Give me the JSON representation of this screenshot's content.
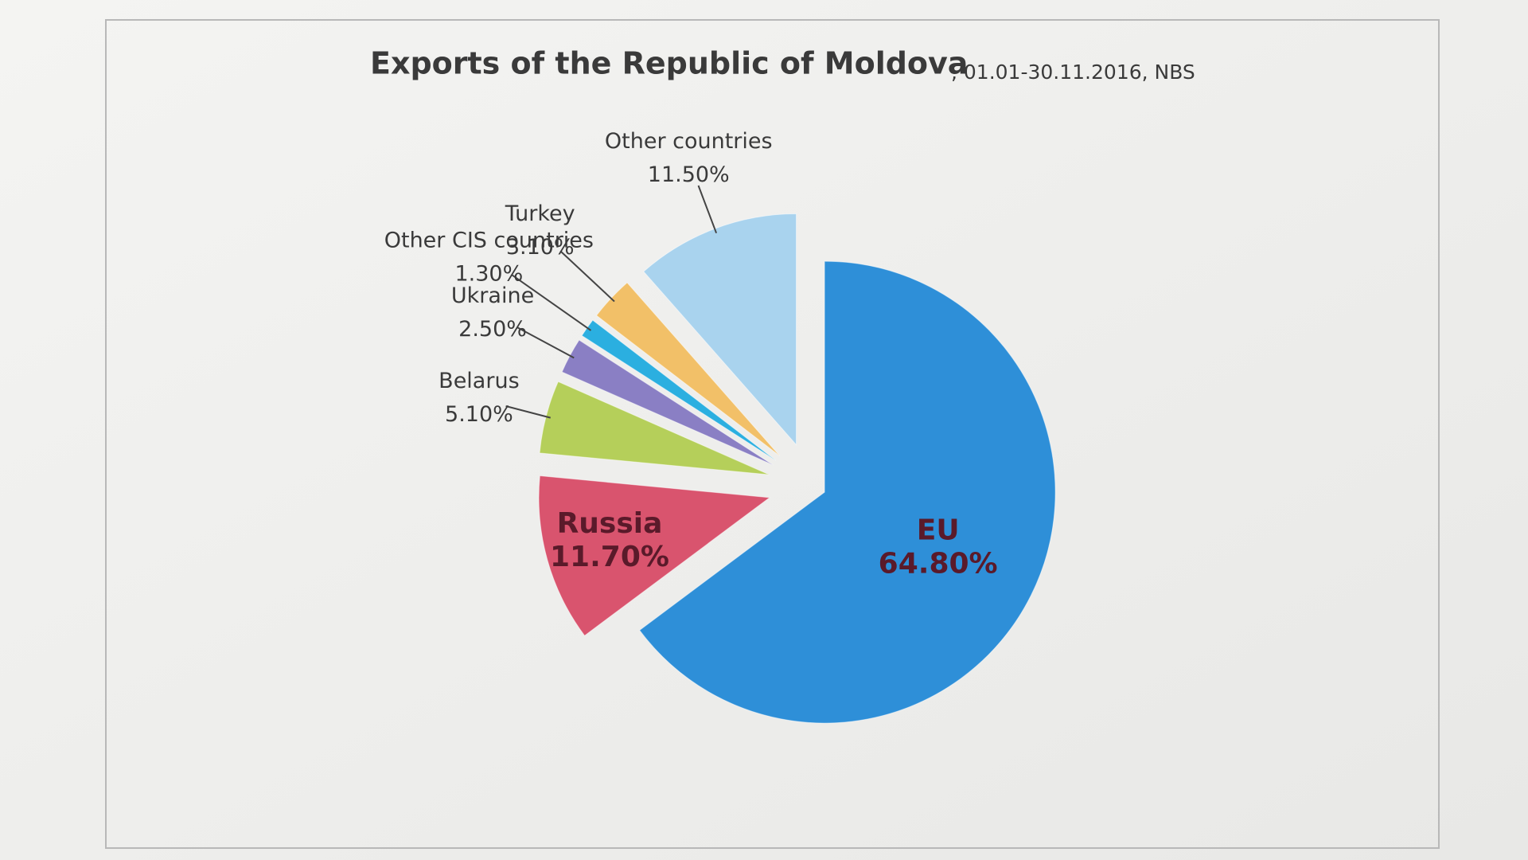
{
  "chart_data": {
    "type": "pie",
    "title": "Exports of the Republic of Moldova",
    "subtitle": ", 01.01-30.11.2016, NBS",
    "categories": [
      "EU",
      "Russia",
      "Belarus",
      "Ukraine",
      "Other CIS countries",
      "Turkey",
      "Other countries"
    ],
    "values": [
      64.8,
      11.7,
      5.1,
      2.5,
      1.3,
      3.1,
      11.5
    ],
    "value_labels": [
      "64.80%",
      "11.70%",
      "5.10%",
      "2.50%",
      "1.30%",
      "3.10%",
      "11.50%"
    ],
    "colors": [
      "#2e8fd8",
      "#d9546e",
      "#b5cf5a",
      "#8a7fc4",
      "#2bafe0",
      "#f2c068",
      "#a9d3ee"
    ]
  }
}
